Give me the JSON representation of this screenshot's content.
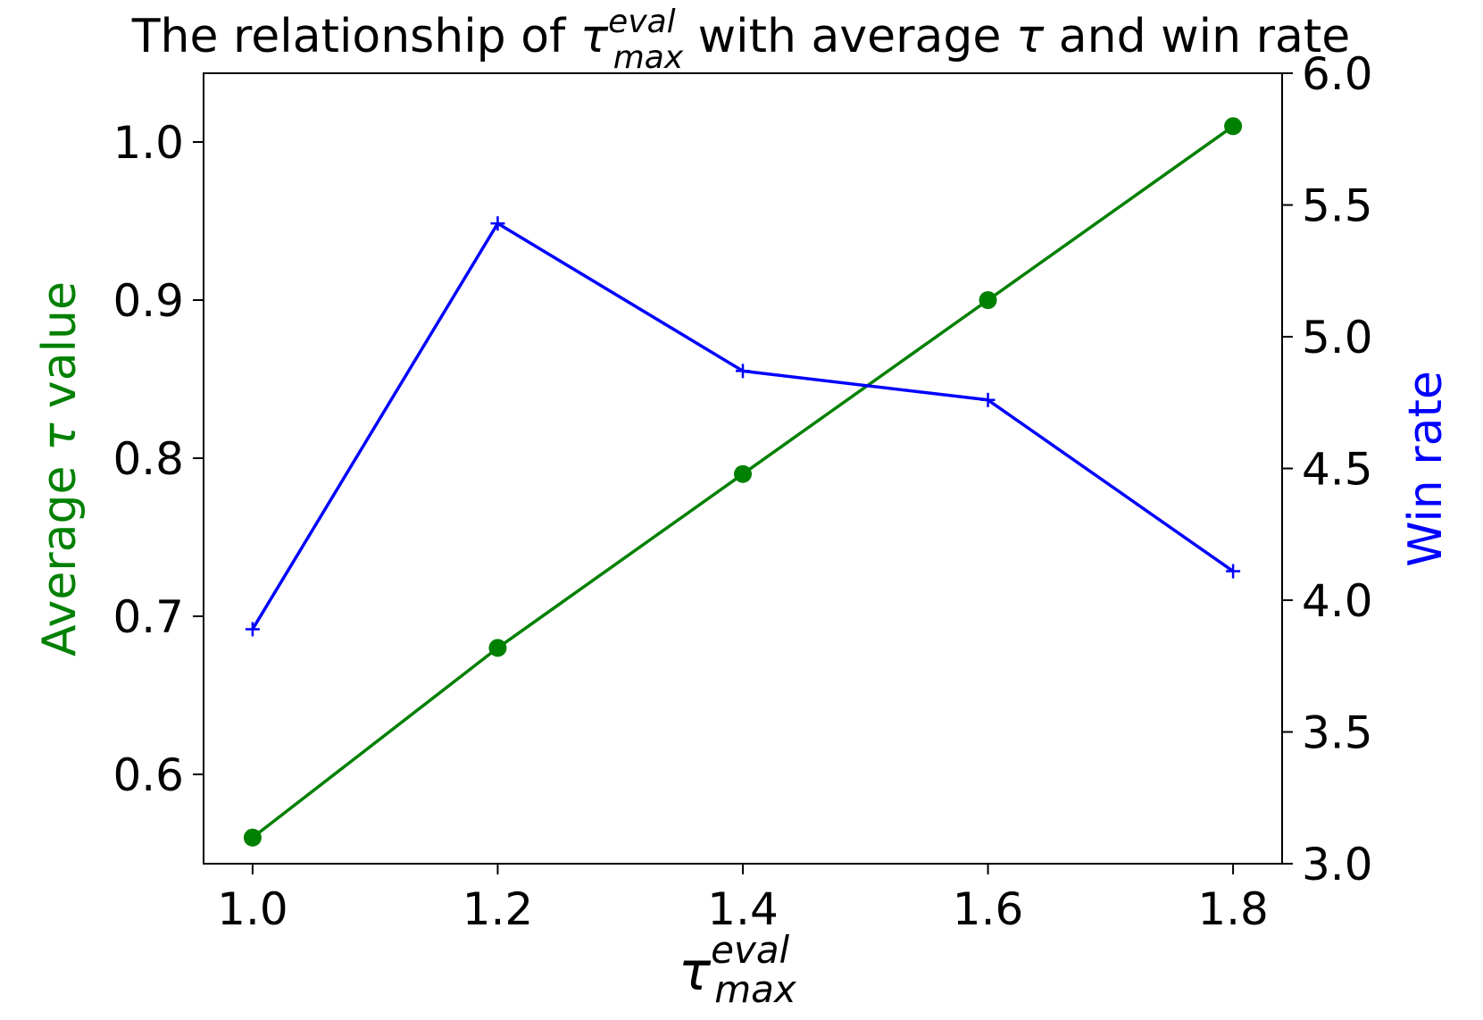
{
  "chart_data": {
    "type": "line",
    "title_prefix": "The relationship of ",
    "title_suffix": " with average ",
    "title_tail": " and win rate",
    "tau_symbol": "τ",
    "tau_superscript": "eval",
    "tau_subscript": "max",
    "x": [
      1.0,
      1.2,
      1.4,
      1.6,
      1.8
    ],
    "x_tick_labels": [
      "1.0",
      "1.2",
      "1.4",
      "1.6",
      "1.8"
    ],
    "xlim": [
      0.96,
      1.84
    ],
    "series": [
      {
        "name": "Average τ value",
        "axis": "left",
        "color": "#008000",
        "marker": "circle",
        "values": [
          0.56,
          0.68,
          0.79,
          0.9,
          1.01
        ]
      },
      {
        "name": "Win rate",
        "axis": "right",
        "color": "#0000ff",
        "marker": "plus",
        "values": [
          3.89,
          5.43,
          4.87,
          4.76,
          4.11
        ]
      }
    ],
    "left_axis": {
      "label_prefix": "Average ",
      "label_suffix": " value",
      "ylim": [
        0.5435,
        1.0435
      ],
      "ticks": [
        0.6,
        0.7,
        0.8,
        0.9,
        1.0
      ],
      "tick_labels": [
        "0.6",
        "0.7",
        "0.8",
        "0.9",
        "1.0"
      ],
      "color": "#008000"
    },
    "right_axis": {
      "label": "Win rate",
      "ylim": [
        3.0,
        6.0
      ],
      "ticks": [
        3.0,
        3.5,
        4.0,
        4.5,
        5.0,
        5.5,
        6.0
      ],
      "tick_labels": [
        "3.0",
        "3.5",
        "4.0",
        "4.5",
        "5.0",
        "5.5",
        "6.0"
      ],
      "color": "#0000ff"
    },
    "grid": false
  }
}
